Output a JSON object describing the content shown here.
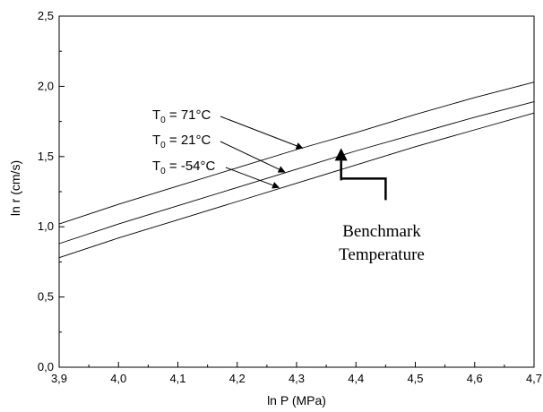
{
  "chart_data": {
    "type": "line",
    "xlabel": "ln P (MPa)",
    "ylabel": "ln r (cm/s)",
    "xlim": [
      3.9,
      4.7
    ],
    "ylim": [
      0.0,
      2.5
    ],
    "x_ticks": [
      "3,9",
      "4,0",
      "4,1",
      "4,2",
      "4,3",
      "4,4",
      "4,5",
      "4,6",
      "4,7"
    ],
    "y_ticks": [
      "0,0",
      "0,5",
      "1,0",
      "1,5",
      "2,0",
      "2,5"
    ],
    "series": [
      {
        "x": [
          3.9,
          4.0,
          4.1,
          4.2,
          4.3,
          4.4,
          4.5,
          4.6,
          4.7
        ],
        "y": [
          1.02,
          1.16,
          1.29,
          1.42,
          1.55,
          1.67,
          1.8,
          1.92,
          2.03
        ]
      },
      {
        "x": [
          3.9,
          4.0,
          4.1,
          4.2,
          4.3,
          4.4,
          4.5,
          4.6,
          4.7
        ],
        "y": [
          0.88,
          1.02,
          1.15,
          1.28,
          1.41,
          1.54,
          1.66,
          1.78,
          1.89
        ]
      },
      {
        "x": [
          3.9,
          4.0,
          4.1,
          4.2,
          4.3,
          4.4,
          4.5,
          4.6,
          4.7
        ],
        "y": [
          0.78,
          0.92,
          1.05,
          1.18,
          1.31,
          1.44,
          1.57,
          1.69,
          1.81
        ]
      }
    ],
    "annotations": [
      {
        "label": "T",
        "sub": "0",
        "rest": " = 71°C",
        "target_x": 4.31,
        "target_y": 1.56
      },
      {
        "label": "T",
        "sub": "0",
        "rest": " = 21°C",
        "target_x": 4.28,
        "target_y": 1.39
      },
      {
        "label": "T",
        "sub": "0",
        "rest": " = -54°C",
        "target_x": 4.27,
        "target_y": 1.28
      }
    ],
    "benchmark": {
      "line1": "Benchmark",
      "line2": "Temperature",
      "target_x": 4.375,
      "target_y": 1.56
    },
    "grid": false,
    "legend": "none"
  }
}
